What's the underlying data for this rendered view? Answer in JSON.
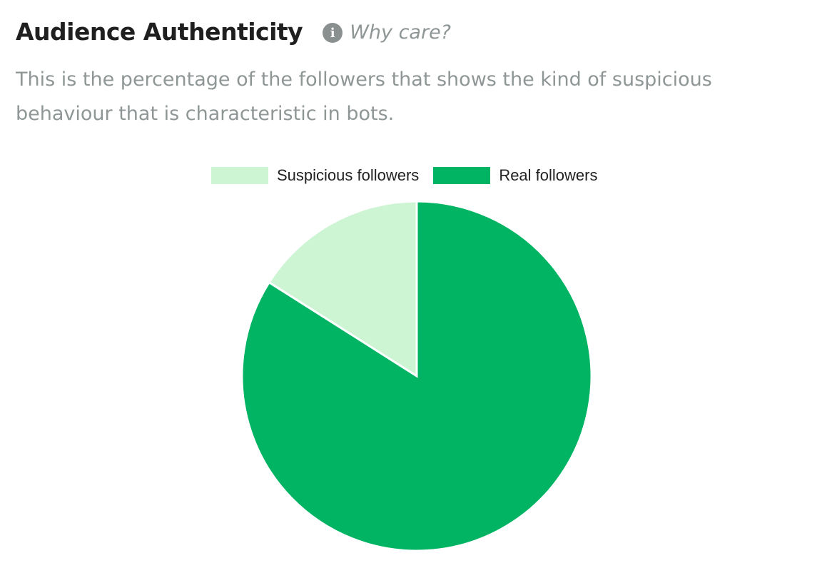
{
  "header": {
    "title": "Audience Authenticity",
    "info_icon": "info-icon",
    "why_care": "Why care?"
  },
  "description": "This is the percentage of the followers that shows the kind of suspicious behaviour that is characteristic in bots.",
  "colors": {
    "suspicious": "#cdf5d3",
    "real": "#00b463",
    "title": "#1f1f1f",
    "muted_text": "#8f9696"
  },
  "chart_data": {
    "type": "pie",
    "title": "",
    "legend_position": "top",
    "series": [
      {
        "name": "Suspicious followers",
        "value": 16,
        "color": "#cdf5d3"
      },
      {
        "name": "Real followers",
        "value": 84,
        "color": "#00b463"
      }
    ]
  }
}
